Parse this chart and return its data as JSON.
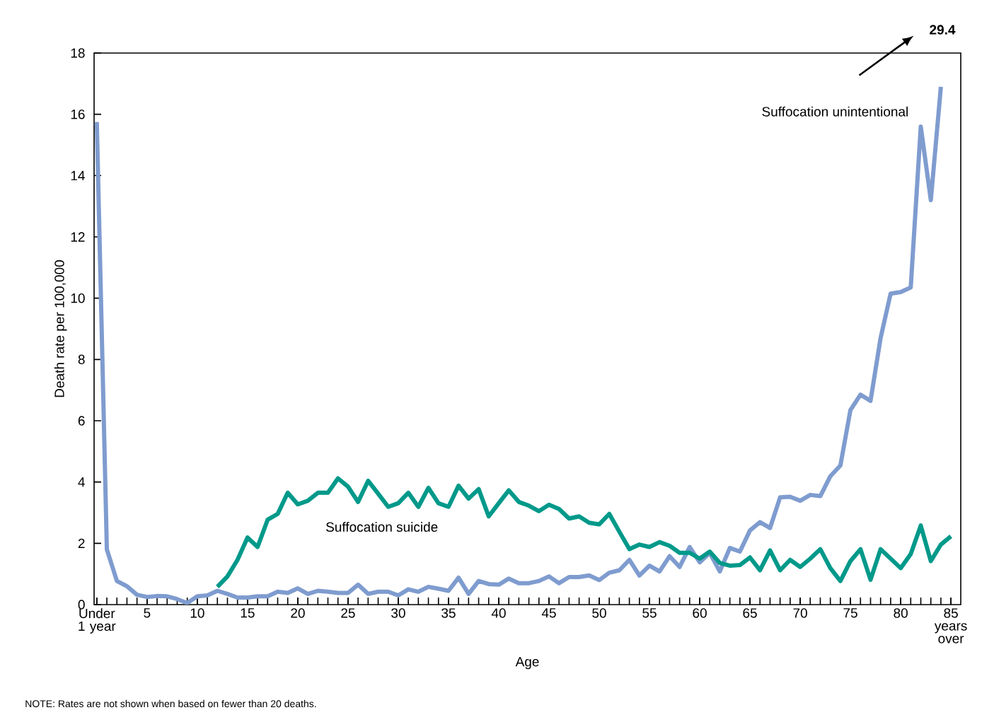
{
  "chart_data": {
    "type": "line",
    "xlabel": "Age",
    "ylabel": "Death rate per 100,000",
    "categories": [
      "Under 1 year",
      null,
      null,
      null,
      null,
      "5",
      null,
      null,
      null,
      null,
      "10",
      null,
      null,
      null,
      null,
      "15",
      null,
      null,
      null,
      null,
      "20",
      null,
      null,
      null,
      null,
      "25",
      null,
      null,
      null,
      null,
      "30",
      null,
      null,
      null,
      null,
      "35",
      null,
      null,
      null,
      null,
      "40",
      null,
      null,
      null,
      null,
      "45",
      null,
      null,
      null,
      null,
      "50",
      null,
      null,
      null,
      null,
      "55",
      null,
      null,
      null,
      null,
      "60",
      null,
      null,
      null,
      null,
      "65",
      null,
      null,
      null,
      null,
      "70",
      null,
      null,
      null,
      null,
      "75",
      null,
      null,
      null,
      null,
      "80",
      null,
      null,
      null,
      null,
      "85 years over"
    ],
    "series": [
      {
        "name": "Suffocation unintentional",
        "color": "#7f9ccf",
        "values": [
          15.75,
          1.8,
          0.77,
          0.6,
          0.32,
          0.25,
          0.28,
          0.27,
          0.18,
          0.05,
          0.27,
          0.3,
          0.45,
          0.35,
          0.23,
          0.23,
          0.27,
          0.27,
          0.42,
          0.38,
          0.53,
          0.35,
          0.45,
          0.42,
          0.38,
          0.38,
          0.65,
          0.35,
          0.42,
          0.42,
          0.3,
          0.5,
          0.42,
          0.58,
          0.52,
          0.45,
          0.88,
          0.35,
          0.77,
          0.67,
          0.65,
          0.85,
          0.7,
          0.7,
          0.77,
          0.92,
          0.7,
          0.9,
          0.9,
          0.95,
          0.8,
          1.04,
          1.12,
          1.46,
          0.95,
          1.27,
          1.08,
          1.58,
          1.23,
          1.88,
          1.38,
          1.69,
          1.08,
          1.85,
          1.73,
          2.42,
          2.69,
          2.5,
          3.5,
          3.52,
          3.39,
          3.58,
          3.54,
          4.19,
          4.54,
          6.35,
          6.85,
          6.65,
          8.7,
          10.15,
          10.2,
          10.35,
          15.6,
          13.2,
          16.9,
          null
        ]
      },
      {
        "name": "Suffocation suicide",
        "color": "#00998a",
        "values": [
          null,
          null,
          null,
          null,
          null,
          null,
          null,
          null,
          null,
          null,
          null,
          null,
          0.58,
          0.92,
          1.46,
          2.19,
          1.88,
          2.77,
          2.96,
          3.65,
          3.27,
          3.39,
          3.65,
          3.65,
          4.12,
          3.85,
          3.35,
          4.04,
          3.62,
          3.19,
          3.31,
          3.65,
          3.19,
          3.81,
          3.31,
          3.19,
          3.88,
          3.46,
          3.77,
          2.88,
          3.31,
          3.73,
          3.35,
          3.23,
          3.05,
          3.26,
          3.12,
          2.81,
          2.88,
          2.67,
          2.62,
          2.96,
          2.38,
          1.81,
          1.96,
          1.88,
          2.04,
          1.92,
          1.69,
          1.69,
          1.5,
          1.73,
          1.36,
          1.27,
          1.29,
          1.54,
          1.12,
          1.77,
          1.12,
          1.46,
          1.23,
          1.5,
          1.81,
          1.19,
          0.77,
          1.42,
          1.81,
          0.81,
          1.81,
          1.5,
          1.19,
          1.65,
          2.58,
          1.42,
          1.96,
          2.23
        ]
      }
    ],
    "ylim": [
      0,
      18
    ],
    "yticks": [
      0,
      2,
      4,
      6,
      8,
      10,
      12,
      14,
      16,
      18
    ],
    "grid": false,
    "legend": false,
    "marker": "none",
    "line_style": "solid",
    "annotations": [
      "NOTE: Rates are not shown when based on fewer than 20 deaths.",
      "29.4"
    ]
  }
}
